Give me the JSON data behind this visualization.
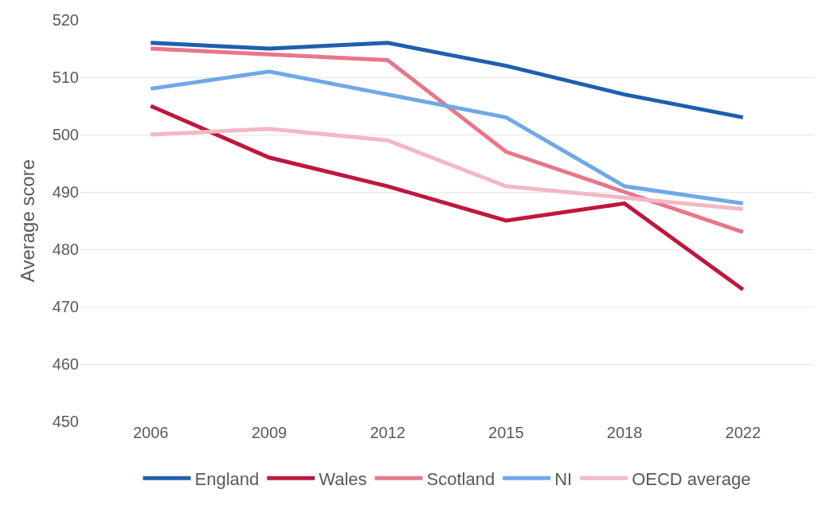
{
  "chart_data": {
    "type": "line",
    "ylabel": "Average score",
    "categories": [
      "2006",
      "2009",
      "2012",
      "2015",
      "2018",
      "2022"
    ],
    "series": [
      {
        "name": "England",
        "color": "#1f5fae",
        "values": [
          516,
          515,
          516,
          512,
          507,
          503
        ]
      },
      {
        "name": "Wales",
        "color": "#c0173f",
        "values": [
          505,
          496,
          491,
          485,
          488,
          473
        ]
      },
      {
        "name": "Scotland",
        "color": "#e8768a",
        "values": [
          515,
          514,
          513,
          497,
          490,
          483
        ]
      },
      {
        "name": "NI",
        "color": "#6fa8e8",
        "values": [
          508,
          511,
          507,
          503,
          491,
          488
        ]
      },
      {
        "name": "OECD average",
        "color": "#f2b8c4",
        "values": [
          500,
          501,
          499,
          491,
          489,
          487
        ]
      }
    ],
    "ylim": [
      450,
      520
    ],
    "yticks": [
      450,
      460,
      470,
      480,
      490,
      500,
      510,
      520
    ],
    "grid": "y",
    "legend": "bottom",
    "marker": "none",
    "line_style": "solid"
  }
}
